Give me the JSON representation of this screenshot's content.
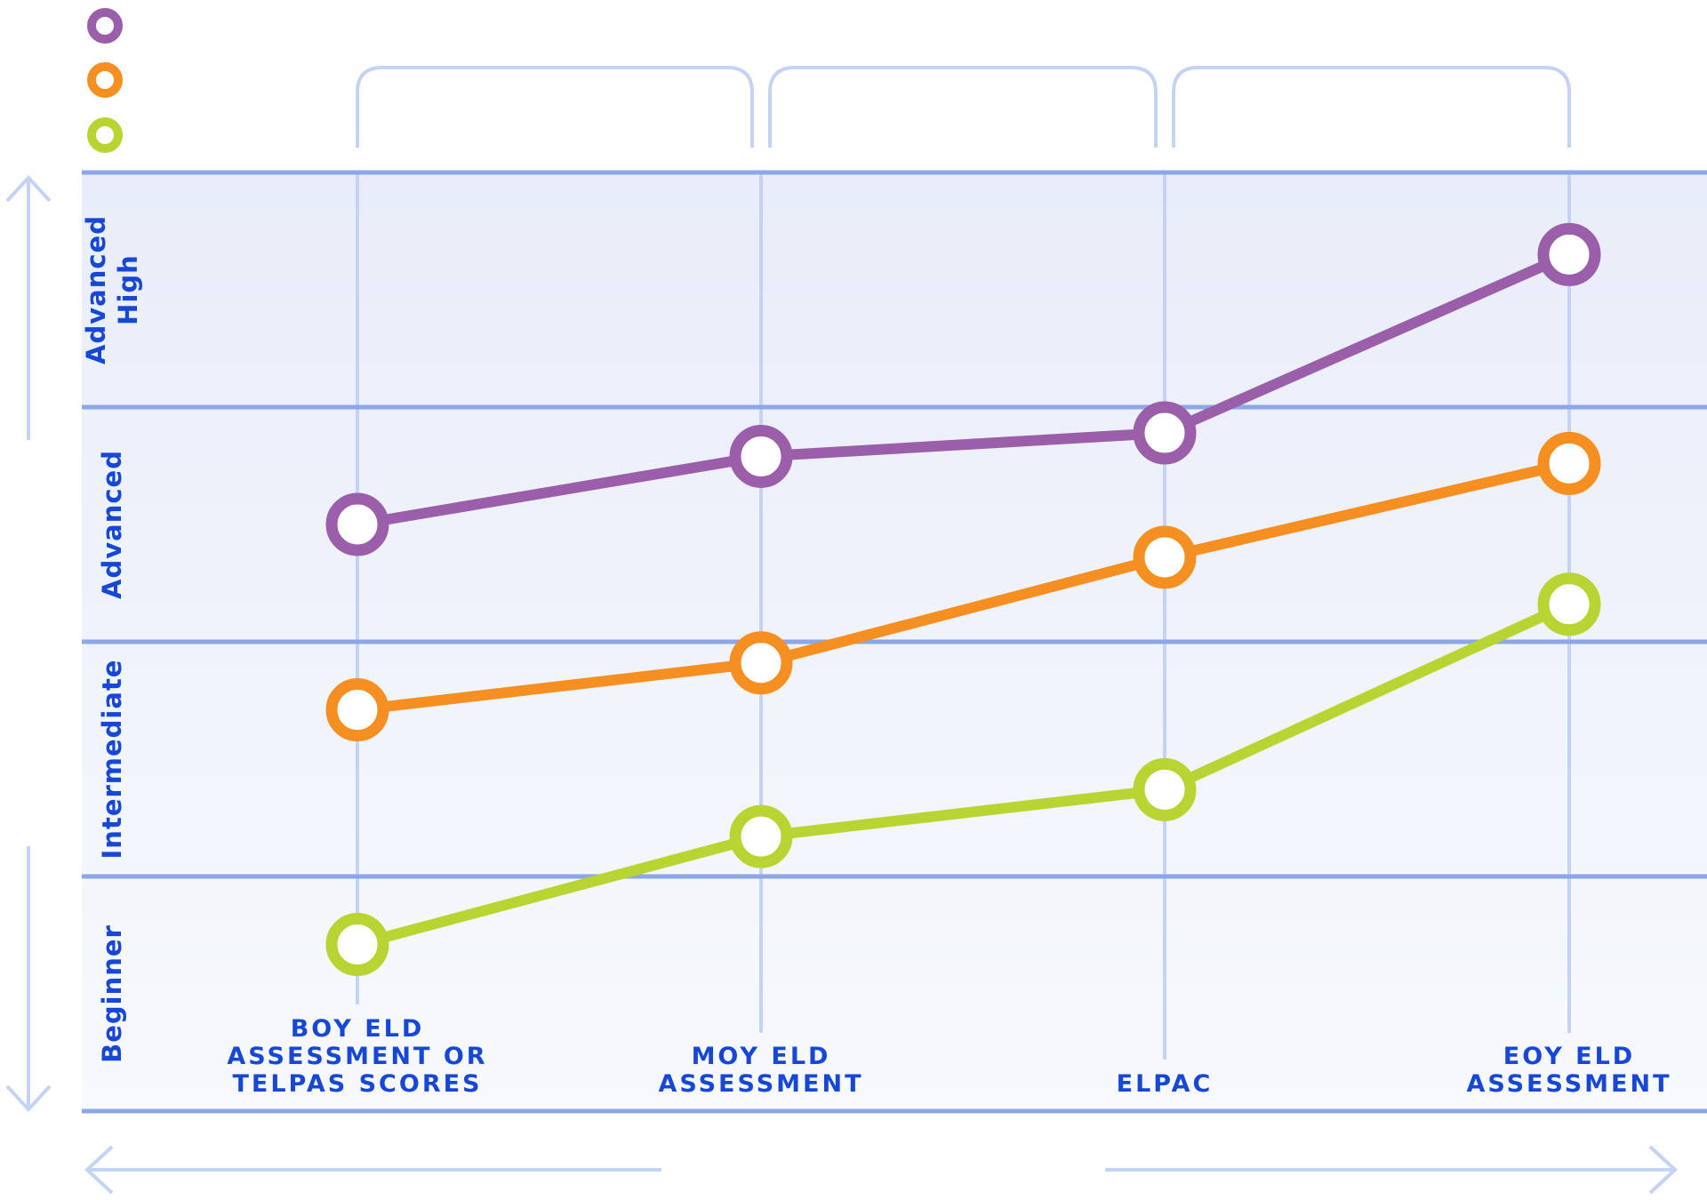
{
  "chart_data": {
    "type": "line",
    "title": "",
    "xlabel": "",
    "ylabel": "",
    "categories": [
      [
        "BOY ELD",
        "ASSESSMENT OR",
        "TELPAS SCORES"
      ],
      [
        "MOY ELD",
        "ASSESSMENT"
      ],
      [
        "ELPAC"
      ],
      [
        "EOY ELD",
        "ASSESSMENT"
      ]
    ],
    "levels": [
      "Beginner",
      "Intermediate",
      "Advanced",
      [
        "Advanced",
        "High"
      ]
    ],
    "ylim": [
      0,
      4
    ],
    "grid": true,
    "legend": "top-left",
    "series": [
      {
        "color": "#9b5fa9",
        "values": [
          2.5,
          2.79,
          2.89,
          3.65
        ]
      },
      {
        "color": "#f58f22",
        "values": [
          1.71,
          1.91,
          2.36,
          2.76
        ]
      },
      {
        "color": "#b8d433",
        "values": [
          0.71,
          1.17,
          1.37,
          2.16
        ]
      }
    ],
    "colors": {
      "band": "#eaeef9",
      "band_line": "#8ba7e8",
      "vertical_line": "#c4d3f3",
      "arrow": "#c4d3f3",
      "label": "#1747d6"
    }
  }
}
